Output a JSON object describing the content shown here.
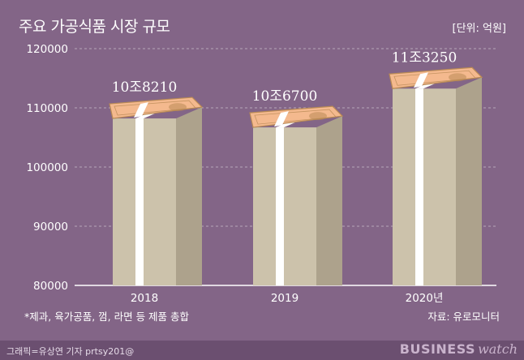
{
  "header": {
    "title": "주요 가공식품 시장 규모",
    "unit": "[단위: 억원]"
  },
  "footer": {
    "note": "*제과, 육가공품, 껌, 라면 등 제품 총합",
    "source": "자료: 유로모니터",
    "credit": "그래픽=유상연 기자 prtsy201@",
    "brand_bold": "BUSINESS",
    "brand_italic": "watch"
  },
  "colors": {
    "background": "#836587",
    "gridline": "#b7a7ba",
    "axis": "#ffffff",
    "stack_front": "#ccc2ab",
    "stack_side": "#ada28c",
    "band": "#ffffff",
    "note_top": "#f4b98e",
    "note_border": "#b98a55"
  },
  "chart_data": {
    "type": "bar",
    "categories": [
      "2018",
      "2019",
      "2020년"
    ],
    "values": [
      108210,
      106700,
      113250
    ],
    "data_labels": [
      "10조8210",
      "10조6700",
      "11조3250"
    ],
    "ylim": [
      80000,
      120000
    ],
    "yticks": [
      80000,
      90000,
      100000,
      110000,
      120000
    ],
    "ytick_labels": [
      "80000",
      "90000",
      "100000",
      "110000",
      "120000"
    ],
    "grid": true
  }
}
